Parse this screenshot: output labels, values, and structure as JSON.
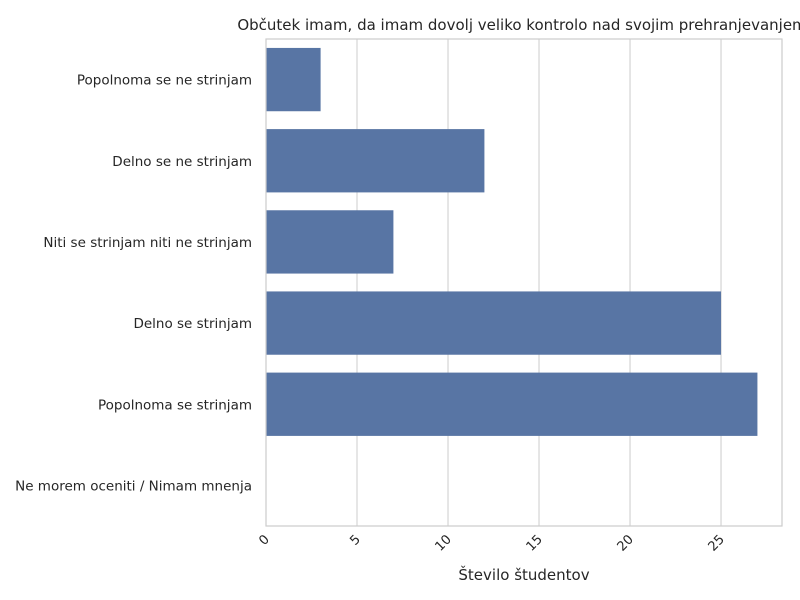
{
  "chart_data": {
    "type": "bar",
    "orientation": "horizontal",
    "title": "Občutek imam, da imam dovolj veliko kontrolo nad svojim prehranjevanjem",
    "xlabel": "Število študentov",
    "ylabel": "",
    "categories": [
      "Popolnoma se ne strinjam",
      "Delno se ne strinjam",
      "Niti se strinjam niti ne strinjam",
      "Delno se strinjam",
      "Popolnoma se strinjam",
      "Ne morem oceniti / Nimam mnenja"
    ],
    "values": [
      3,
      12,
      7,
      25,
      27,
      0
    ],
    "xlim": [
      0,
      28.35
    ],
    "xticks": [
      0,
      5,
      10,
      15,
      20,
      25
    ],
    "grid": true,
    "bar_color": "#5875a4",
    "grid_color": "#cccccc"
  }
}
